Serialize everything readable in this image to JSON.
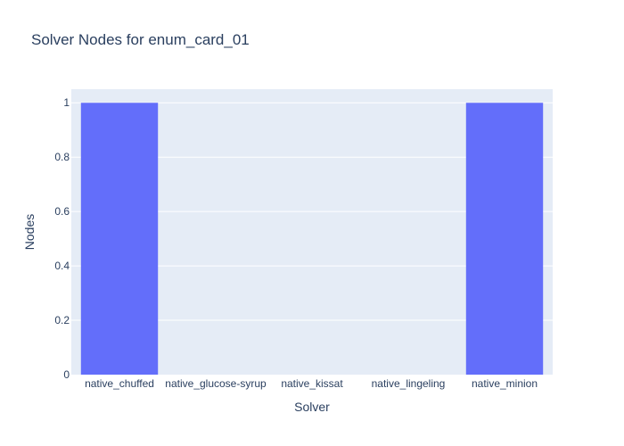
{
  "chart_data": {
    "type": "bar",
    "title": "Solver Nodes for enum_card_01",
    "xlabel": "Solver",
    "ylabel": "Nodes",
    "categories": [
      "native_chuffed",
      "native_glucose-syrup",
      "native_kissat",
      "native_lingeling",
      "native_minion"
    ],
    "values": [
      1,
      0,
      0,
      0,
      1
    ],
    "ylim": [
      0,
      1.05
    ],
    "yticks": [
      0,
      0.2,
      0.4,
      0.6,
      0.8,
      1
    ],
    "ytick_labels": [
      "0",
      "0.2",
      "0.4",
      "0.6",
      "0.8",
      "1"
    ],
    "grid": true,
    "legend": "none",
    "colors": {
      "bar": "#636efa",
      "plot_bg": "#e5ecf6",
      "grid": "#ffffff",
      "text": "#2a3f5f"
    }
  }
}
